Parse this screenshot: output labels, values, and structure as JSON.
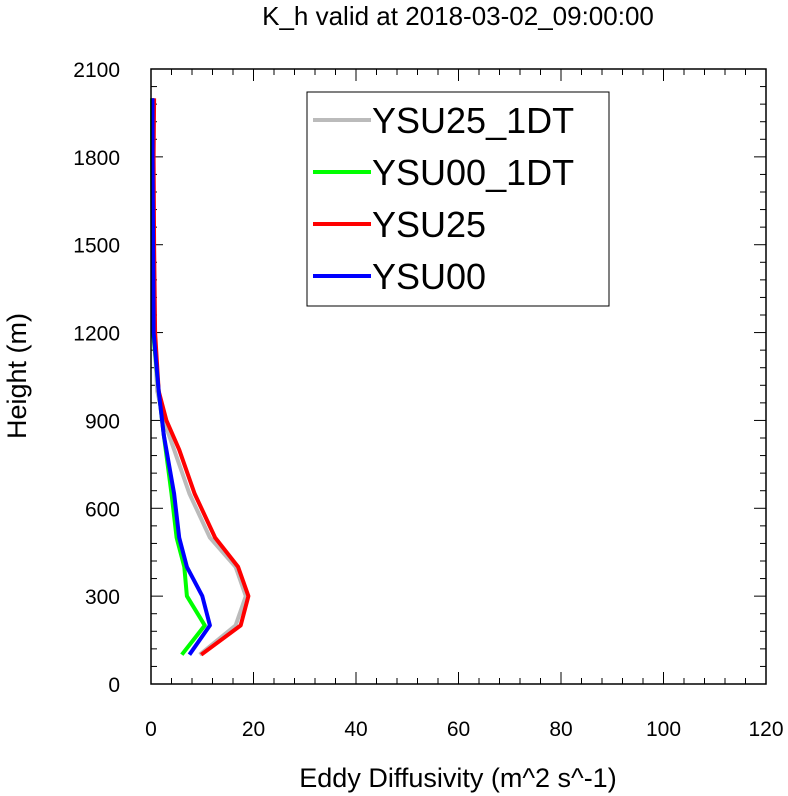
{
  "chart_data": {
    "type": "line",
    "title": "K_h valid at 2018-03-02_09:00:00",
    "xlabel": "Eddy Diffusivity (m^2 s^-1)",
    "ylabel": "Height (m)",
    "xlim": [
      0,
      120
    ],
    "ylim": [
      0,
      2100
    ],
    "xticks": [
      0,
      20,
      40,
      60,
      80,
      100,
      120
    ],
    "yticks": [
      0,
      300,
      600,
      900,
      1200,
      1500,
      1800,
      2100
    ],
    "xtick_labels": [
      "0",
      "20",
      "40",
      "60",
      "80",
      "100",
      "120"
    ],
    "ytick_labels": [
      "0",
      "300",
      "600",
      "900",
      "1200",
      "1500",
      "1800",
      "2100"
    ],
    "legend_position": "top-center",
    "grid": false,
    "series": [
      {
        "name": "YSU25_1DT",
        "color": "#bbbbbb",
        "points": [
          [
            9.5,
            100
          ],
          [
            16.5,
            200
          ],
          [
            18.5,
            300
          ],
          [
            16.5,
            400
          ],
          [
            11.5,
            500
          ],
          [
            7.5,
            650
          ],
          [
            4.5,
            800
          ],
          [
            2.5,
            900
          ],
          [
            1.2,
            1000
          ],
          [
            0.6,
            1200
          ],
          [
            0.4,
            1500
          ],
          [
            0.3,
            1800
          ],
          [
            0.3,
            2000
          ]
        ]
      },
      {
        "name": "YSU00_1DT",
        "color": "#00ff00",
        "points": [
          [
            6.0,
            100
          ],
          [
            10.5,
            200
          ],
          [
            7.0,
            300
          ],
          [
            6.5,
            400
          ],
          [
            5.0,
            500
          ],
          [
            4.0,
            650
          ],
          [
            2.5,
            850
          ],
          [
            1.5,
            1000
          ],
          [
            0.4,
            1200
          ],
          [
            0.3,
            1500
          ],
          [
            0.2,
            1800
          ],
          [
            0.2,
            2000
          ]
        ]
      },
      {
        "name": "YSU25",
        "color": "#ff0000",
        "points": [
          [
            9.8,
            100
          ],
          [
            17.5,
            200
          ],
          [
            19.0,
            300
          ],
          [
            17.0,
            400
          ],
          [
            12.5,
            500
          ],
          [
            8.5,
            650
          ],
          [
            5.5,
            800
          ],
          [
            3.0,
            900
          ],
          [
            1.5,
            1000
          ],
          [
            0.8,
            1200
          ],
          [
            0.6,
            1500
          ],
          [
            0.5,
            1800
          ],
          [
            0.6,
            2000
          ]
        ]
      },
      {
        "name": "YSU00",
        "color": "#0000ff",
        "points": [
          [
            7.5,
            100
          ],
          [
            11.5,
            200
          ],
          [
            10.0,
            300
          ],
          [
            7.0,
            400
          ],
          [
            5.5,
            500
          ],
          [
            4.5,
            650
          ],
          [
            2.5,
            850
          ],
          [
            1.5,
            1000
          ],
          [
            0.5,
            1200
          ],
          [
            0.4,
            1500
          ],
          [
            0.3,
            1800
          ],
          [
            0.3,
            2000
          ]
        ]
      }
    ]
  }
}
